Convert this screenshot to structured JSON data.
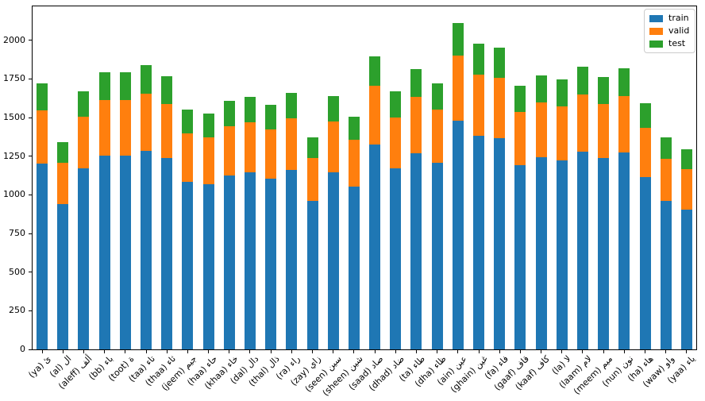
{
  "chart_data": {
    "type": "bar",
    "stacked": true,
    "title": "",
    "xlabel": "",
    "ylabel": "",
    "grid": false,
    "background_color": "#ffffff",
    "spine_color": "#000000",
    "categories": [
      "(ya) ئ",
      "(al) ال",
      "(aleff) ألف",
      "(bb) باء",
      "(toot) ة",
      "(taa) تاء",
      "(thaa) ثاء",
      "(jeem) جيم",
      "(haa) حاء",
      "(khaa) خاء",
      "(dal) دال",
      "(thal) ذال",
      "(ra) راء",
      "(zay) زاي",
      "(seen) سين",
      "(sheen) شين",
      "(saad) صاد",
      "(dhad) ضاد",
      "(ta) طاء",
      "(dha) ظاء",
      "(ain) عين",
      "(ghain) غين",
      "(fa) فاء",
      "(gaaf) قاف",
      "(kaaf) كاف",
      "(la) لا",
      "(laam) لام",
      "(meem) ميم",
      "(nun) نون",
      "(ha) هاء",
      "(waw) واو",
      "(yaa) ياء"
    ],
    "series": [
      {
        "name": "train",
        "color": "#1f77b4",
        "values": [
          1205,
          940,
          1170,
          1254,
          1254,
          1287,
          1236,
          1086,
          1068,
          1125,
          1144,
          1107,
          1161,
          962,
          1147,
          1055,
          1327,
          1169,
          1271,
          1206,
          1480,
          1384,
          1369,
          1194,
          1242,
          1222,
          1282,
          1236,
          1273,
          1114,
          960,
          905
        ]
      },
      {
        "name": "valid",
        "color": "#ff7f0e",
        "values": [
          344,
          269,
          334,
          358,
          358,
          368,
          353,
          310,
          305,
          321,
          327,
          316,
          332,
          275,
          328,
          301,
          379,
          334,
          363,
          345,
          423,
          395,
          391,
          341,
          355,
          349,
          366,
          353,
          364,
          318,
          274,
          259
        ]
      },
      {
        "name": "test",
        "color": "#2ca02c",
        "values": [
          173,
          134,
          168,
          179,
          179,
          183,
          177,
          156,
          153,
          161,
          163,
          159,
          166,
          137,
          163,
          151,
          189,
          167,
          182,
          172,
          211,
          198,
          195,
          170,
          177,
          175,
          184,
          176,
          182,
          160,
          137,
          129
        ]
      }
    ],
    "totals": [
      1722,
      1343,
      1672,
      1791,
      1791,
      1838,
      1766,
      1552,
      1526,
      1607,
      1634,
      1582,
      1659,
      1374,
      1638,
      1507,
      1895,
      1670,
      1816,
      1723,
      2114,
      1977,
      1955,
      1705,
      1774,
      1746,
      1832,
      1765,
      1819,
      1592,
      1371,
      1293
    ],
    "y_ticks": [
      0,
      250,
      500,
      750,
      1000,
      1250,
      1500,
      1750,
      2000
    ],
    "ylim": [
      0,
      2220
    ],
    "legend": {
      "position": "upper right",
      "entries": [
        "train",
        "valid",
        "test"
      ]
    }
  }
}
